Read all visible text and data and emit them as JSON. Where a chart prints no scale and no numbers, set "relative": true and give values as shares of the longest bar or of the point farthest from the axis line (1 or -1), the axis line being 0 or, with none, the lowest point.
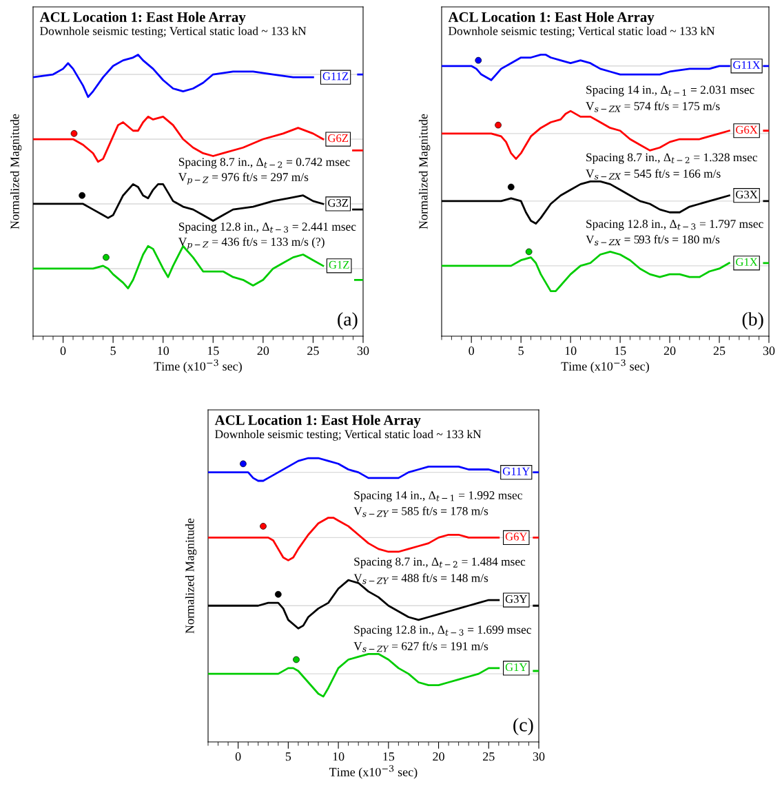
{
  "chart_data": [
    {
      "type": "line",
      "title": "ACL Location 1: East Hole Array",
      "subtitle": "Downhole seismic testing; Vertical static load ~ 133 kN",
      "xlabel": "Time (x10$^{−3}$ sec)",
      "ylabel": "Normalized Magnitude",
      "relative": true,
      "xlim": [
        -3,
        30
      ],
      "xticks": [
        0,
        5,
        10,
        15,
        20,
        25,
        30
      ],
      "grid": false,
      "legend": false,
      "series": [
        {
          "name": "G11Z",
          "color": "#0000ff",
          "x": [
            -3,
            -1,
            0,
            0.5,
            1,
            1.5,
            2,
            2.5,
            3,
            4,
            5,
            6,
            7,
            7.5,
            8,
            9,
            10,
            11,
            12,
            13,
            14,
            15,
            17,
            19,
            21,
            23,
            25,
            27,
            29.5,
            30
          ],
          "values": [
            0.92,
            0.93,
            0.95,
            0.97,
            0.95,
            0.92,
            0.89,
            0.85,
            0.87,
            0.92,
            0.96,
            0.98,
            0.99,
            1.0,
            0.98,
            0.95,
            0.91,
            0.88,
            0.87,
            0.88,
            0.9,
            0.93,
            0.94,
            0.94,
            0.93,
            0.92,
            0.92,
            null,
            0.93,
            0.93
          ]
        },
        {
          "name": "G6Z",
          "color": "#ff0000",
          "x": [
            -3,
            0,
            1,
            2,
            3,
            3.5,
            4,
            5,
            5.5,
            6,
            7,
            7.5,
            8,
            8.5,
            9,
            10,
            11,
            12,
            13,
            14,
            15,
            16,
            18,
            20,
            22,
            23.5,
            25,
            26,
            27.5,
            29,
            30
          ],
          "values": [
            0.7,
            0.7,
            0.7,
            0.68,
            0.65,
            0.62,
            0.63,
            0.71,
            0.75,
            0.76,
            0.73,
            0.73,
            0.76,
            0.78,
            0.77,
            0.78,
            0.75,
            0.7,
            0.67,
            0.65,
            0.64,
            0.65,
            0.67,
            0.7,
            0.72,
            0.74,
            0.72,
            0.7,
            null,
            0.66,
            0.66
          ]
        },
        {
          "name": "G3Z",
          "color": "#000000",
          "x": [
            -3,
            2,
            3,
            4,
            4.5,
            5,
            6,
            7,
            7.5,
            8,
            8.5,
            9,
            9.5,
            10,
            11,
            12,
            13,
            14,
            15,
            16,
            17,
            19,
            21,
            22.5,
            24,
            25,
            26,
            27.5,
            29,
            30
          ],
          "values": [
            0.47,
            0.47,
            0.45,
            0.43,
            0.42,
            0.43,
            0.5,
            0.54,
            0.53,
            0.5,
            0.49,
            0.52,
            0.54,
            0.54,
            0.48,
            0.46,
            0.45,
            0.43,
            0.41,
            0.43,
            0.45,
            0.46,
            0.48,
            0.49,
            0.5,
            0.48,
            0.47,
            null,
            0.45,
            0.45
          ]
        },
        {
          "name": "G1Z",
          "color": "#00cc00",
          "x": [
            -3,
            3,
            4,
            4.5,
            5,
            6,
            6.5,
            7,
            8,
            8.5,
            9,
            10,
            10.5,
            11,
            12,
            13,
            14,
            15,
            16,
            17,
            18,
            19,
            20,
            21,
            22,
            23,
            24,
            25,
            26,
            26.8,
            29.2,
            30
          ],
          "values": [
            0.24,
            0.24,
            0.25,
            0.24,
            0.22,
            0.19,
            0.17,
            0.2,
            0.29,
            0.32,
            0.31,
            0.24,
            0.21,
            0.25,
            0.32,
            0.28,
            0.23,
            0.23,
            0.23,
            0.21,
            0.2,
            0.18,
            0.2,
            0.24,
            0.26,
            0.28,
            0.29,
            0.27,
            0.25,
            null,
            0.2,
            0.2
          ]
        },
        {
          "type": "scatter",
          "color": "#ff0000",
          "x": [
            1.1
          ],
          "values": [
            0.72
          ]
        },
        {
          "type": "scatter",
          "color": "#000000",
          "x": [
            1.9
          ],
          "values": [
            0.5
          ]
        },
        {
          "type": "scatter",
          "color": "#00cc00",
          "x": [
            4.3
          ],
          "values": [
            0.28
          ]
        }
      ],
      "ref_lines": [
        {
          "axis": "y",
          "value": 0.93,
          "color": "#d9d9d9"
        },
        {
          "axis": "y",
          "value": 0.7,
          "color": "#d9d9d9"
        },
        {
          "axis": "y",
          "value": 0.47,
          "color": "#d9d9d9"
        },
        {
          "axis": "y",
          "value": 0.24,
          "color": "#d9d9d9"
        }
      ],
      "annotations": [
        "Spacing 8.7 in., Δ$_{t−2}$ = 0.742 msec",
        "V$_{p−Z}$ = 976 ft/s = 297 m/s",
        "Spacing 12.8 in., Δ$_{t−3}$ = 2.441 msec",
        "V$_{p−Z}$ = 436 ft/s = 133 m/s (?)",
        "(a)"
      ]
    },
    {
      "type": "line",
      "title": "ACL Location 1: East Hole Array",
      "subtitle": "Downhole seismic testing; Vertical static load ~ 133 kN",
      "xlabel": "Time (x10$^{−3}$ sec)",
      "ylabel": "Normalized Magnitude",
      "relative": true,
      "xlim": [
        -3,
        30
      ],
      "xticks": [
        0,
        5,
        10,
        15,
        20,
        25,
        30
      ],
      "grid": false,
      "legend": false,
      "series": [
        {
          "name": "G11X",
          "color": "#0000ff",
          "x": [
            -3,
            0,
            0.5,
            1,
            2,
            2.5,
            3,
            4,
            5,
            6,
            7,
            7.5,
            8,
            9,
            10,
            11,
            12,
            13,
            14,
            15,
            16,
            17,
            18,
            19,
            20,
            22,
            24,
            25,
            26,
            27.5,
            29.5,
            30
          ],
          "values": [
            0.96,
            0.96,
            0.95,
            0.93,
            0.91,
            0.93,
            0.95,
            0.97,
            0.99,
            0.99,
            1.0,
            1.0,
            0.99,
            0.98,
            0.97,
            0.98,
            0.97,
            0.95,
            0.94,
            0.93,
            0.93,
            0.93,
            0.93,
            0.93,
            0.94,
            0.95,
            0.95,
            0.96,
            0.96,
            null,
            0.96,
            0.96
          ]
        },
        {
          "name": "G6X",
          "color": "#ff0000",
          "x": [
            -3,
            2,
            3,
            3.5,
            4,
            4.5,
            5,
            6,
            7,
            8,
            9,
            9.5,
            10,
            11,
            12,
            13,
            14,
            15,
            16,
            17,
            18,
            19,
            20,
            21,
            22,
            23,
            24,
            25,
            26,
            27.5,
            29.5,
            30
          ],
          "values": [
            0.72,
            0.72,
            0.71,
            0.69,
            0.65,
            0.63,
            0.65,
            0.71,
            0.74,
            0.76,
            0.77,
            0.79,
            0.8,
            0.78,
            0.78,
            0.76,
            0.74,
            0.73,
            0.7,
            0.68,
            0.66,
            0.67,
            0.69,
            0.7,
            0.7,
            0.7,
            0.71,
            0.72,
            0.73,
            null,
            0.73,
            0.73
          ]
        },
        {
          "name": "G3X",
          "color": "#000000",
          "x": [
            -3,
            3,
            4,
            5,
            5.5,
            6,
            6.5,
            7,
            8,
            9,
            10,
            11,
            12,
            13,
            14,
            15,
            16,
            17,
            18,
            19,
            20,
            21,
            22,
            23,
            24,
            25,
            26,
            27.5,
            29.5,
            30
          ],
          "values": [
            0.48,
            0.48,
            0.49,
            0.48,
            0.44,
            0.41,
            0.4,
            0.42,
            0.47,
            0.5,
            0.52,
            0.54,
            0.55,
            0.55,
            0.54,
            0.52,
            0.5,
            0.48,
            0.47,
            0.45,
            0.44,
            0.44,
            0.46,
            0.47,
            0.48,
            0.49,
            0.5,
            null,
            0.48,
            0.48
          ]
        },
        {
          "name": "G1X",
          "color": "#00cc00",
          "x": [
            -3,
            3,
            4,
            5,
            6,
            6.5,
            7,
            8,
            8.5,
            9,
            10,
            11,
            12,
            13,
            14,
            15,
            16,
            17,
            18,
            19,
            20,
            21,
            22,
            23,
            24,
            25,
            26,
            27.5,
            29.5,
            30
          ],
          "values": [
            0.25,
            0.25,
            0.25,
            0.27,
            0.28,
            0.26,
            0.22,
            0.16,
            0.16,
            0.18,
            0.22,
            0.25,
            0.26,
            0.29,
            0.3,
            0.29,
            0.27,
            0.24,
            0.22,
            0.21,
            0.22,
            0.22,
            0.21,
            0.21,
            0.23,
            0.24,
            0.26,
            null,
            0.26,
            0.26
          ]
        },
        {
          "type": "scatter",
          "color": "#0000ff",
          "x": [
            0.7
          ],
          "values": [
            0.98
          ]
        },
        {
          "type": "scatter",
          "color": "#ff0000",
          "x": [
            2.7
          ],
          "values": [
            0.75
          ]
        },
        {
          "type": "scatter",
          "color": "#000000",
          "x": [
            4.0
          ],
          "values": [
            0.53
          ]
        },
        {
          "type": "scatter",
          "color": "#00cc00",
          "x": [
            5.8
          ],
          "values": [
            0.3
          ]
        }
      ],
      "ref_lines": [
        {
          "axis": "y",
          "value": 0.96,
          "color": "#d9d9d9"
        },
        {
          "axis": "y",
          "value": 0.72,
          "color": "#d9d9d9"
        },
        {
          "axis": "y",
          "value": 0.48,
          "color": "#d9d9d9"
        },
        {
          "axis": "y",
          "value": 0.25,
          "color": "#d9d9d9"
        }
      ],
      "annotations": [
        "Spacing 14 in., Δ$_{t−1}$ = 2.031 msec",
        "V$_{s−ZX}$ = 574 ft/s = 175 m/s",
        "Spacing 8.7 in., Δ$_{t−2}$ = 1.328 msec",
        "V$_{s−ZX}$ = 545 ft/s = 166 m/s",
        "Spacing 12.8 in., Δ$_{t−3}$ = 1.797 msec",
        "V$_{s−ZX}$ = 593 ft/s = 180 m/s",
        "(b)"
      ]
    },
    {
      "type": "line",
      "title": "ACL Location 1: East Hole Array",
      "subtitle": "Downhole seismic testing; Vertical static load ~ 133 kN",
      "xlabel": "Time (x10$^{−3}$ sec)",
      "ylabel": "Normalized Magnitude",
      "relative": true,
      "xlim": [
        -3,
        30
      ],
      "xticks": [
        0,
        5,
        10,
        15,
        20,
        25,
        30
      ],
      "grid": false,
      "legend": false,
      "series": [
        {
          "name": "G11Y",
          "color": "#0000ff",
          "x": [
            -3,
            0,
            1,
            1.5,
            2,
            2.5,
            3,
            4,
            5,
            6,
            7,
            8,
            9,
            10,
            11,
            12,
            13,
            14,
            15,
            16,
            17,
            18,
            19,
            20,
            21,
            22,
            23,
            24,
            25,
            26,
            27.5,
            29.5,
            30
          ],
          "values": [
            0.95,
            0.95,
            0.95,
            0.93,
            0.92,
            0.92,
            0.93,
            0.95,
            0.97,
            0.99,
            1.0,
            1.0,
            0.99,
            0.98,
            0.96,
            0.95,
            0.93,
            0.93,
            0.93,
            0.93,
            0.95,
            0.96,
            0.97,
            0.97,
            0.97,
            0.97,
            0.96,
            0.96,
            0.96,
            0.95,
            null,
            0.95,
            0.95
          ]
        },
        {
          "name": "G6Y",
          "color": "#ff0000",
          "x": [
            -3,
            2,
            3,
            3.5,
            4,
            4.5,
            5,
            5.5,
            6,
            7,
            8,
            9,
            9.5,
            10,
            11,
            12,
            13,
            14,
            15,
            16,
            17,
            18,
            19,
            20,
            21,
            22,
            23,
            24,
            26,
            27.5,
            29.5,
            30
          ],
          "values": [
            0.72,
            0.72,
            0.72,
            0.71,
            0.68,
            0.65,
            0.64,
            0.65,
            0.68,
            0.73,
            0.77,
            0.79,
            0.79,
            0.78,
            0.76,
            0.73,
            0.7,
            0.68,
            0.67,
            0.67,
            0.68,
            0.69,
            0.7,
            0.72,
            0.73,
            0.73,
            0.72,
            0.72,
            0.72,
            null,
            0.72,
            0.72
          ]
        },
        {
          "name": "G3Y",
          "color": "#000000",
          "x": [
            -3,
            2,
            3,
            4,
            4.5,
            5,
            6,
            6.5,
            7,
            8,
            9,
            10,
            11,
            12,
            13,
            14,
            15,
            16,
            17,
            18,
            19,
            20,
            21,
            22,
            23,
            24,
            25,
            26,
            27.5,
            29.5,
            30
          ],
          "values": [
            0.48,
            0.48,
            0.49,
            0.49,
            0.47,
            0.43,
            0.4,
            0.41,
            0.44,
            0.47,
            0.49,
            0.54,
            0.57,
            0.56,
            0.53,
            0.51,
            0.48,
            0.46,
            0.44,
            0.43,
            0.44,
            0.45,
            0.46,
            0.47,
            0.48,
            0.49,
            0.5,
            0.5,
            null,
            0.48,
            0.48
          ]
        },
        {
          "name": "G1Y",
          "color": "#00cc00",
          "x": [
            -3,
            4,
            5,
            5.5,
            6,
            7,
            8,
            8.5,
            9,
            10,
            11,
            12,
            13,
            14,
            15,
            16,
            17,
            18,
            19,
            20,
            21,
            22,
            23,
            24,
            25,
            26,
            27.5,
            29.5,
            30
          ],
          "values": [
            0.24,
            0.24,
            0.26,
            0.26,
            0.25,
            0.21,
            0.17,
            0.16,
            0.19,
            0.26,
            0.29,
            0.3,
            0.31,
            0.31,
            0.29,
            0.26,
            0.24,
            0.21,
            0.2,
            0.2,
            0.21,
            0.22,
            0.23,
            0.24,
            0.26,
            0.26,
            null,
            0.25,
            0.25
          ]
        },
        {
          "type": "scatter",
          "color": "#0000ff",
          "x": [
            0.5
          ],
          "values": [
            0.98
          ]
        },
        {
          "type": "scatter",
          "color": "#ff0000",
          "x": [
            2.5
          ],
          "values": [
            0.76
          ]
        },
        {
          "type": "scatter",
          "color": "#000000",
          "x": [
            4.0
          ],
          "values": [
            0.52
          ]
        },
        {
          "type": "scatter",
          "color": "#00cc00",
          "x": [
            5.8
          ],
          "values": [
            0.29
          ]
        }
      ],
      "ref_lines": [
        {
          "axis": "y",
          "value": 0.95,
          "color": "#d9d9d9"
        },
        {
          "axis": "y",
          "value": 0.72,
          "color": "#d9d9d9"
        },
        {
          "axis": "y",
          "value": 0.48,
          "color": "#d9d9d9"
        },
        {
          "axis": "y",
          "value": 0.24,
          "color": "#d9d9d9"
        }
      ],
      "annotations": [
        "Spacing 14 in., Δ$_{t−1}$ = 1.992 msec",
        "V$_{s−ZY}$ = 585 ft/s = 178 m/s",
        "Spacing 8.7 in., Δ$_{t−2}$ = 1.484 msec",
        "V$_{s−ZY}$ = 488 ft/s = 148 m/s",
        "Spacing 12.8 in., Δ$_{t−3}$ = 1.699 msec",
        "V$_{s−ZY}$ = 627 ft/s = 191 m/s",
        "(c)"
      ]
    }
  ]
}
